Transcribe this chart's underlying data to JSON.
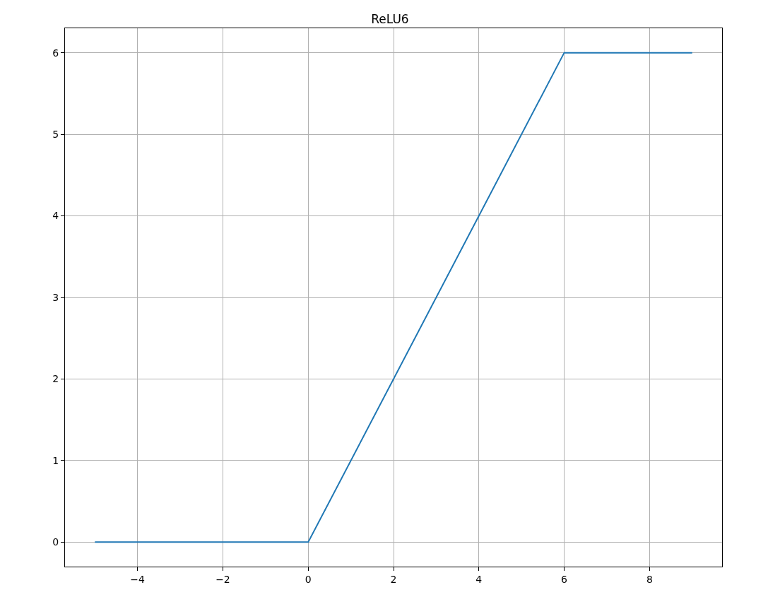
{
  "chart_data": {
    "type": "line",
    "title": "ReLU6",
    "x": [
      -5,
      0,
      6,
      9
    ],
    "series": [
      {
        "color": "#1f77b4",
        "values": [
          0,
          0,
          6,
          6
        ]
      }
    ],
    "xlim": [
      -5.7,
      9.7
    ],
    "xticks": [
      {
        "value": -4,
        "label": "−4"
      },
      {
        "value": -2,
        "label": "−2"
      },
      0,
      2,
      4,
      6,
      8
    ],
    "ylim": [
      -0.3,
      6.3
    ],
    "yticks": [
      0,
      1,
      2,
      3,
      4,
      5,
      6
    ],
    "grid": true,
    "marker": "none",
    "line_style": "solid"
  }
}
